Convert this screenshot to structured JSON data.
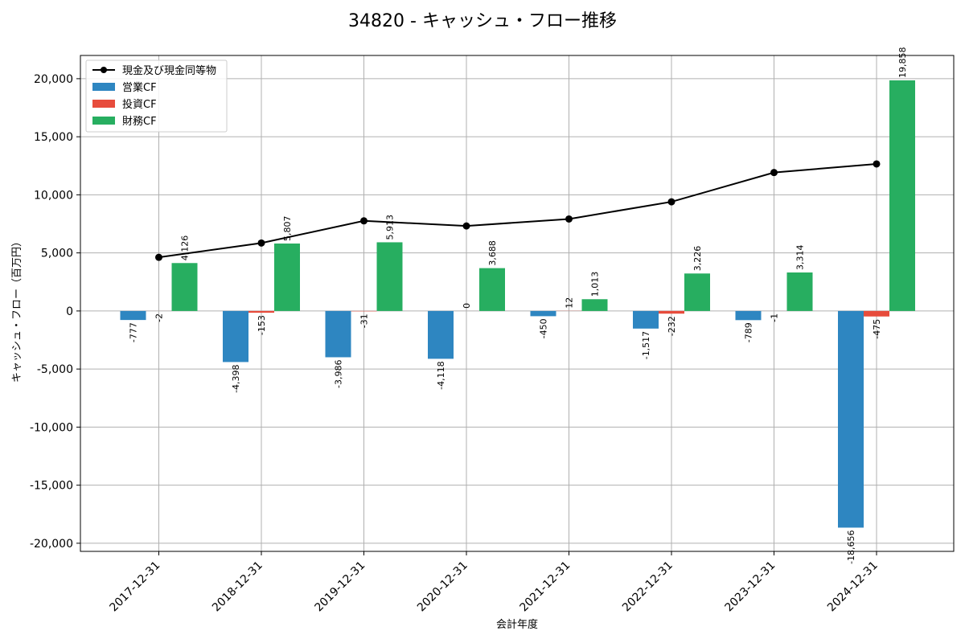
{
  "chart_data": {
    "type": "bar",
    "title": "34820 - キャッシュ・フロー推移",
    "xlabel": "会計年度",
    "ylabel": "キャッシュ・フロー（百万円）",
    "ylim": [
      -20700,
      22000
    ],
    "yticks": [
      -20000,
      -15000,
      -10000,
      -5000,
      0,
      5000,
      10000,
      15000,
      20000
    ],
    "ytick_labels": [
      "-20,000",
      "-15,000",
      "-10,000",
      "-5,000",
      "0",
      "5,000",
      "10,000",
      "15,000",
      "20,000"
    ],
    "categories": [
      "2017-12-31",
      "2018-12-31",
      "2019-12-31",
      "2020-12-31",
      "2021-12-31",
      "2022-12-31",
      "2023-12-31",
      "2024-12-31"
    ],
    "series": [
      {
        "name": "営業CF",
        "type": "bar",
        "color": "#2e86c1",
        "values": [
          -777,
          -4398,
          -3986,
          -4118,
          -450,
          -1517,
          -789,
          -18656
        ],
        "labels": [
          "-777",
          "-4,398",
          "-3,986",
          "-4,118",
          "-450",
          "-1,517",
          "-789",
          "-18,656"
        ]
      },
      {
        "name": "投資CF",
        "type": "bar",
        "color": "#e74c3c",
        "values": [
          -2,
          -153,
          -31,
          0,
          12,
          -232,
          -1,
          -475
        ],
        "labels": [
          "-2",
          "-153",
          "-31",
          "0",
          "12",
          "-232",
          "-1",
          "-475"
        ]
      },
      {
        "name": "財務CF",
        "type": "bar",
        "color": "#27ae60",
        "values": [
          4126,
          5807,
          5913,
          3688,
          1013,
          3226,
          3314,
          19858
        ],
        "labels": [
          "4,126",
          "5,807",
          "5,913",
          "3,688",
          "1,013",
          "3,226",
          "3,314",
          "19,858"
        ]
      }
    ],
    "line": {
      "name": "現金及び現金同等物",
      "color": "#000000",
      "values": [
        4620,
        5850,
        7760,
        7320,
        7920,
        9400,
        11920,
        12660
      ]
    },
    "legend": "top-left",
    "grid": true
  }
}
